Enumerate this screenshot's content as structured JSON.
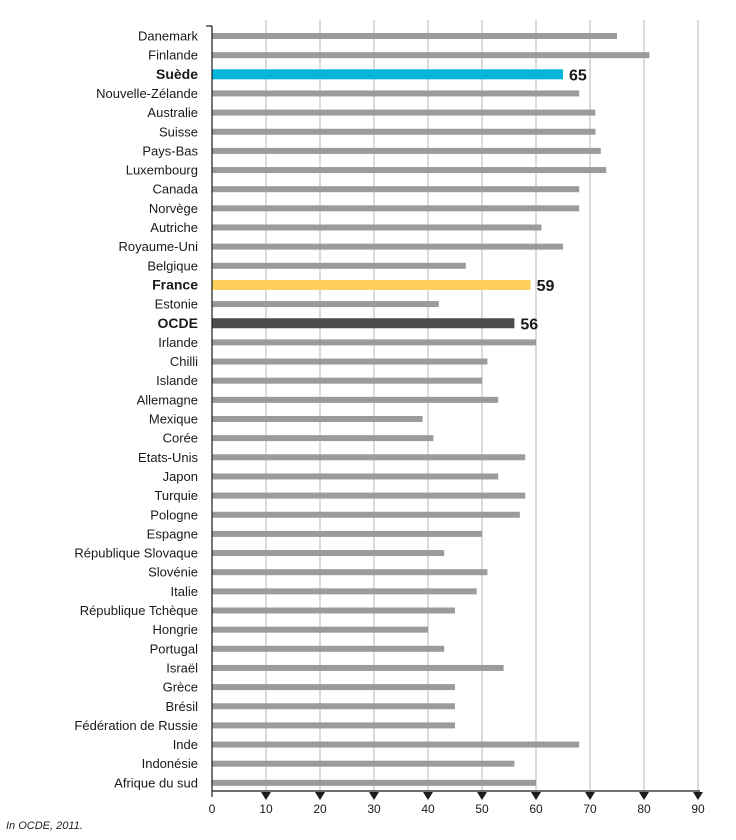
{
  "chart_data": {
    "type": "bar",
    "orientation": "horizontal",
    "categories": [
      "Danemark",
      "Finlande",
      "Suède",
      "Nouvelle-Zélande",
      "Australie",
      "Suisse",
      "Pays-Bas",
      "Luxembourg",
      "Canada",
      "Norvège",
      "Autriche",
      "Royaume-Uni",
      "Belgique",
      "France",
      "Estonie",
      "OCDE",
      "Irlande",
      "Chilli",
      "Islande",
      "Allemagne",
      "Mexique",
      "Corée",
      "Etats-Unis",
      "Japon",
      "Turquie",
      "Pologne",
      "Espagne",
      "République Slovaque",
      "Slovénie",
      "Italie",
      "République Tchèque",
      "Hongrie",
      "Portugal",
      "Israël",
      "Grèce",
      "Brésil",
      "Fédération de Russie",
      "Inde",
      "Indonésie",
      "Afrique du sud"
    ],
    "values": [
      75,
      81,
      65,
      68,
      71,
      71,
      72,
      73,
      68,
      68,
      61,
      65,
      47,
      59,
      42,
      56,
      60,
      51,
      50,
      53,
      39,
      41,
      58,
      53,
      58,
      57,
      50,
      43,
      51,
      49,
      45,
      40,
      43,
      54,
      45,
      45,
      45,
      68,
      56,
      60
    ],
    "highlights": [
      {
        "category": "Suède",
        "label": "65",
        "color": "#00b5d9"
      },
      {
        "category": "France",
        "label": "59",
        "color": "#ffd15c"
      },
      {
        "category": "OCDE",
        "label": "56",
        "color": "#4a4c4d"
      }
    ],
    "default_color": "#9b9b9b",
    "xlim": [
      0,
      90
    ],
    "x_ticks": [
      0,
      10,
      20,
      30,
      40,
      50,
      60,
      70,
      80,
      90
    ],
    "grid": "vertical",
    "title": "",
    "xlabel": "",
    "ylabel": ""
  },
  "source_note": "In OCDE, 2011."
}
